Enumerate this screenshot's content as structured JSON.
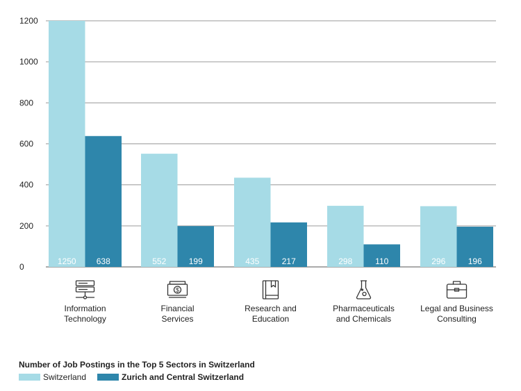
{
  "chart_data": {
    "type": "bar",
    "title": "Number of Job Postings in the Top 5 Sectors in Switzerland",
    "categories": [
      "Information Technology",
      "Financial Services",
      "Research and Education",
      "Pharmaceuticals and Chemicals",
      "Legal and Business Consulting"
    ],
    "category_lines": [
      [
        "Information",
        "Technology"
      ],
      [
        "Financial",
        "Services"
      ],
      [
        "Research and",
        "Education"
      ],
      [
        "Pharmaceuticals",
        "and Chemicals"
      ],
      [
        "Legal and Business",
        "Consulting"
      ]
    ],
    "category_icons": [
      "server-icon",
      "money-icon",
      "book-icon",
      "flask-icon",
      "briefcase-icon"
    ],
    "series": [
      {
        "name": "Switzerland",
        "color": "#a6dbe6",
        "values": [
          1250,
          552,
          435,
          298,
          296
        ]
      },
      {
        "name": "Zurich and Central Switzerland",
        "color": "#2e86ab",
        "values": [
          638,
          199,
          217,
          110,
          196
        ]
      }
    ],
    "ylim": [
      0,
      1200
    ],
    "yticks": [
      0,
      200,
      400,
      600,
      800,
      1000,
      1200
    ],
    "grid": true,
    "legend": "bottom-left",
    "xlabel": "",
    "ylabel": ""
  }
}
